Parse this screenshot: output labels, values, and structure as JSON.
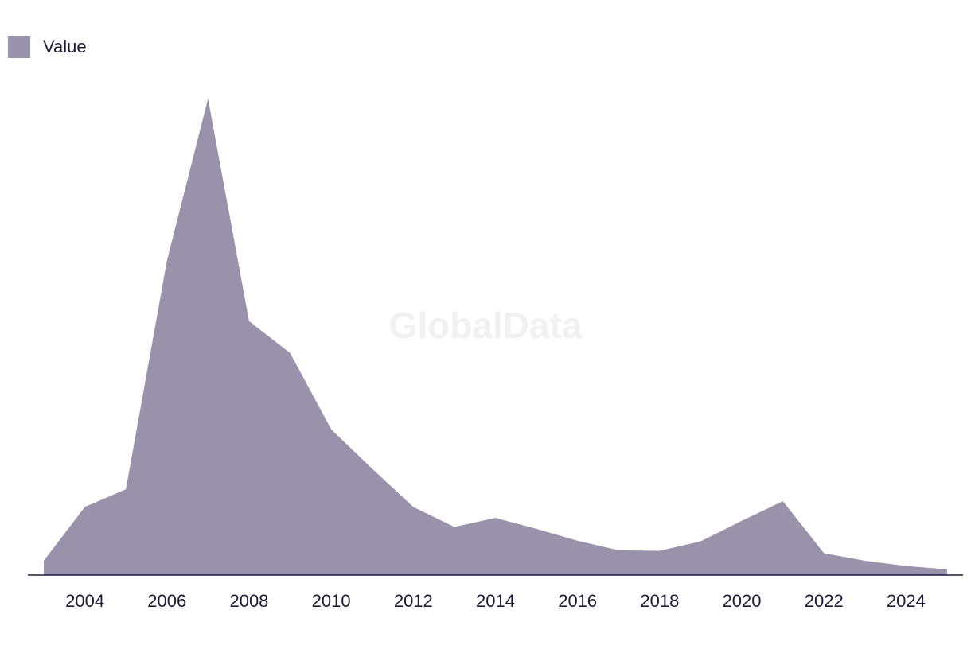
{
  "watermark": "GlobalData",
  "colors": {
    "area": "#9a91aa",
    "axis": "#1d1b36",
    "text": "#1d1b36",
    "watermark": "#f1f0f3"
  },
  "chart_data": {
    "type": "area",
    "title": "",
    "xlabel": "",
    "ylabel": "",
    "legend_position": "top-left",
    "grid": false,
    "x": [
      2003,
      2004,
      2005,
      2006,
      2007,
      2008,
      2009,
      2010,
      2011,
      2012,
      2013,
      2014,
      2015,
      2016,
      2017,
      2018,
      2019,
      2020,
      2021,
      2022,
      2023,
      2024,
      2025
    ],
    "x_ticks": [
      2004,
      2006,
      2008,
      2010,
      2012,
      2014,
      2016,
      2018,
      2020,
      2022,
      2024
    ],
    "ylim": [
      0,
      100
    ],
    "series": [
      {
        "name": "Value",
        "values": [
          3,
          14.3,
          18,
          66,
          100,
          53.3,
          46.6,
          30.6,
          22.3,
          14.3,
          10.1,
          12,
          9.7,
          7.2,
          5.2,
          5.1,
          7.1,
          11.4,
          15.5,
          4.6,
          3,
          1.9,
          1.2
        ]
      }
    ]
  }
}
